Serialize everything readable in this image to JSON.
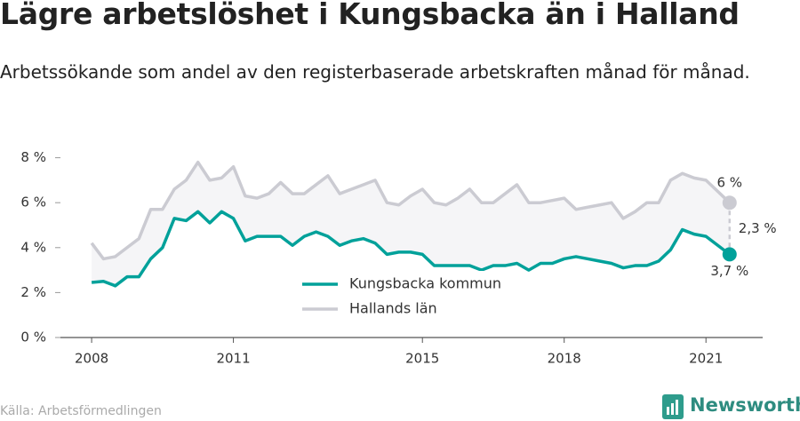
{
  "chart_data": {
    "type": "line",
    "title": "Lägre arbetslöshet i Kungsbacka än i Halland",
    "subtitle": "Arbetssökande som andel av den registerbaserade arbetskraften månad för månad.",
    "source": "Källa: Arbetsförmedlingen",
    "brand": "Newsworthy",
    "x": [
      2008,
      2008.25,
      2008.5,
      2008.75,
      2009,
      2009.25,
      2009.5,
      2009.75,
      2010,
      2010.25,
      2010.5,
      2010.75,
      2011,
      2011.25,
      2011.5,
      2011.75,
      2012,
      2012.25,
      2012.5,
      2012.75,
      2013,
      2013.25,
      2013.5,
      2013.75,
      2014,
      2014.25,
      2014.5,
      2014.75,
      2015,
      2015.25,
      2015.5,
      2015.75,
      2016,
      2016.25,
      2016.5,
      2016.75,
      2017,
      2017.25,
      2017.5,
      2017.75,
      2018,
      2018.25,
      2018.5,
      2018.75,
      2019,
      2019.25,
      2019.5,
      2019.75,
      2020,
      2020.25,
      2020.5,
      2020.75,
      2021,
      2021.25,
      2021.5
    ],
    "series": [
      {
        "name": "Kungsbacka kommun",
        "color": "#00a19a",
        "values": [
          2.45,
          2.5,
          2.3,
          2.7,
          2.7,
          3.5,
          4.0,
          5.3,
          5.2,
          5.6,
          5.1,
          5.6,
          5.3,
          4.3,
          4.5,
          4.5,
          4.5,
          4.1,
          4.5,
          4.7,
          4.5,
          4.1,
          4.3,
          4.4,
          4.2,
          3.7,
          3.8,
          3.8,
          3.7,
          3.2,
          3.2,
          3.2,
          3.2,
          3.0,
          3.2,
          3.2,
          3.3,
          3.0,
          3.3,
          3.3,
          3.5,
          3.6,
          3.5,
          3.4,
          3.3,
          3.1,
          3.2,
          3.2,
          3.4,
          3.9,
          4.8,
          4.6,
          4.5,
          4.1,
          3.7
        ]
      },
      {
        "name": "Hallands län",
        "color": "#cbcbd2",
        "values": [
          4.2,
          3.5,
          3.6,
          4.0,
          4.4,
          5.7,
          5.7,
          6.6,
          7.0,
          7.8,
          7.0,
          7.1,
          7.6,
          6.3,
          6.2,
          6.4,
          6.9,
          6.4,
          6.4,
          6.8,
          7.2,
          6.4,
          6.6,
          6.8,
          7.0,
          6.0,
          5.9,
          6.3,
          6.6,
          6.0,
          5.9,
          6.2,
          6.6,
          6.0,
          6.0,
          6.4,
          6.8,
          6.0,
          6.0,
          6.1,
          6.2,
          5.7,
          5.8,
          5.9,
          6.0,
          5.3,
          5.6,
          6.0,
          6.0,
          7.0,
          7.3,
          7.1,
          7.0,
          6.5,
          6.0
        ]
      }
    ],
    "annotations": [
      "6 %",
      "3,7 %",
      "2,3 %"
    ],
    "xlim": [
      2007.34,
      2022.2
    ],
    "xticks": [
      2008,
      2011,
      2015,
      2018,
      2021
    ],
    "ylim": [
      0,
      8.3
    ],
    "yticks": [
      {
        "value": 0,
        "label": "0 %"
      },
      {
        "value": 2,
        "label": "2 %"
      },
      {
        "value": 4,
        "label": "4 %"
      },
      {
        "value": 6,
        "label": "6 %"
      },
      {
        "value": 8,
        "label": "8 %"
      }
    ],
    "grid": false
  }
}
